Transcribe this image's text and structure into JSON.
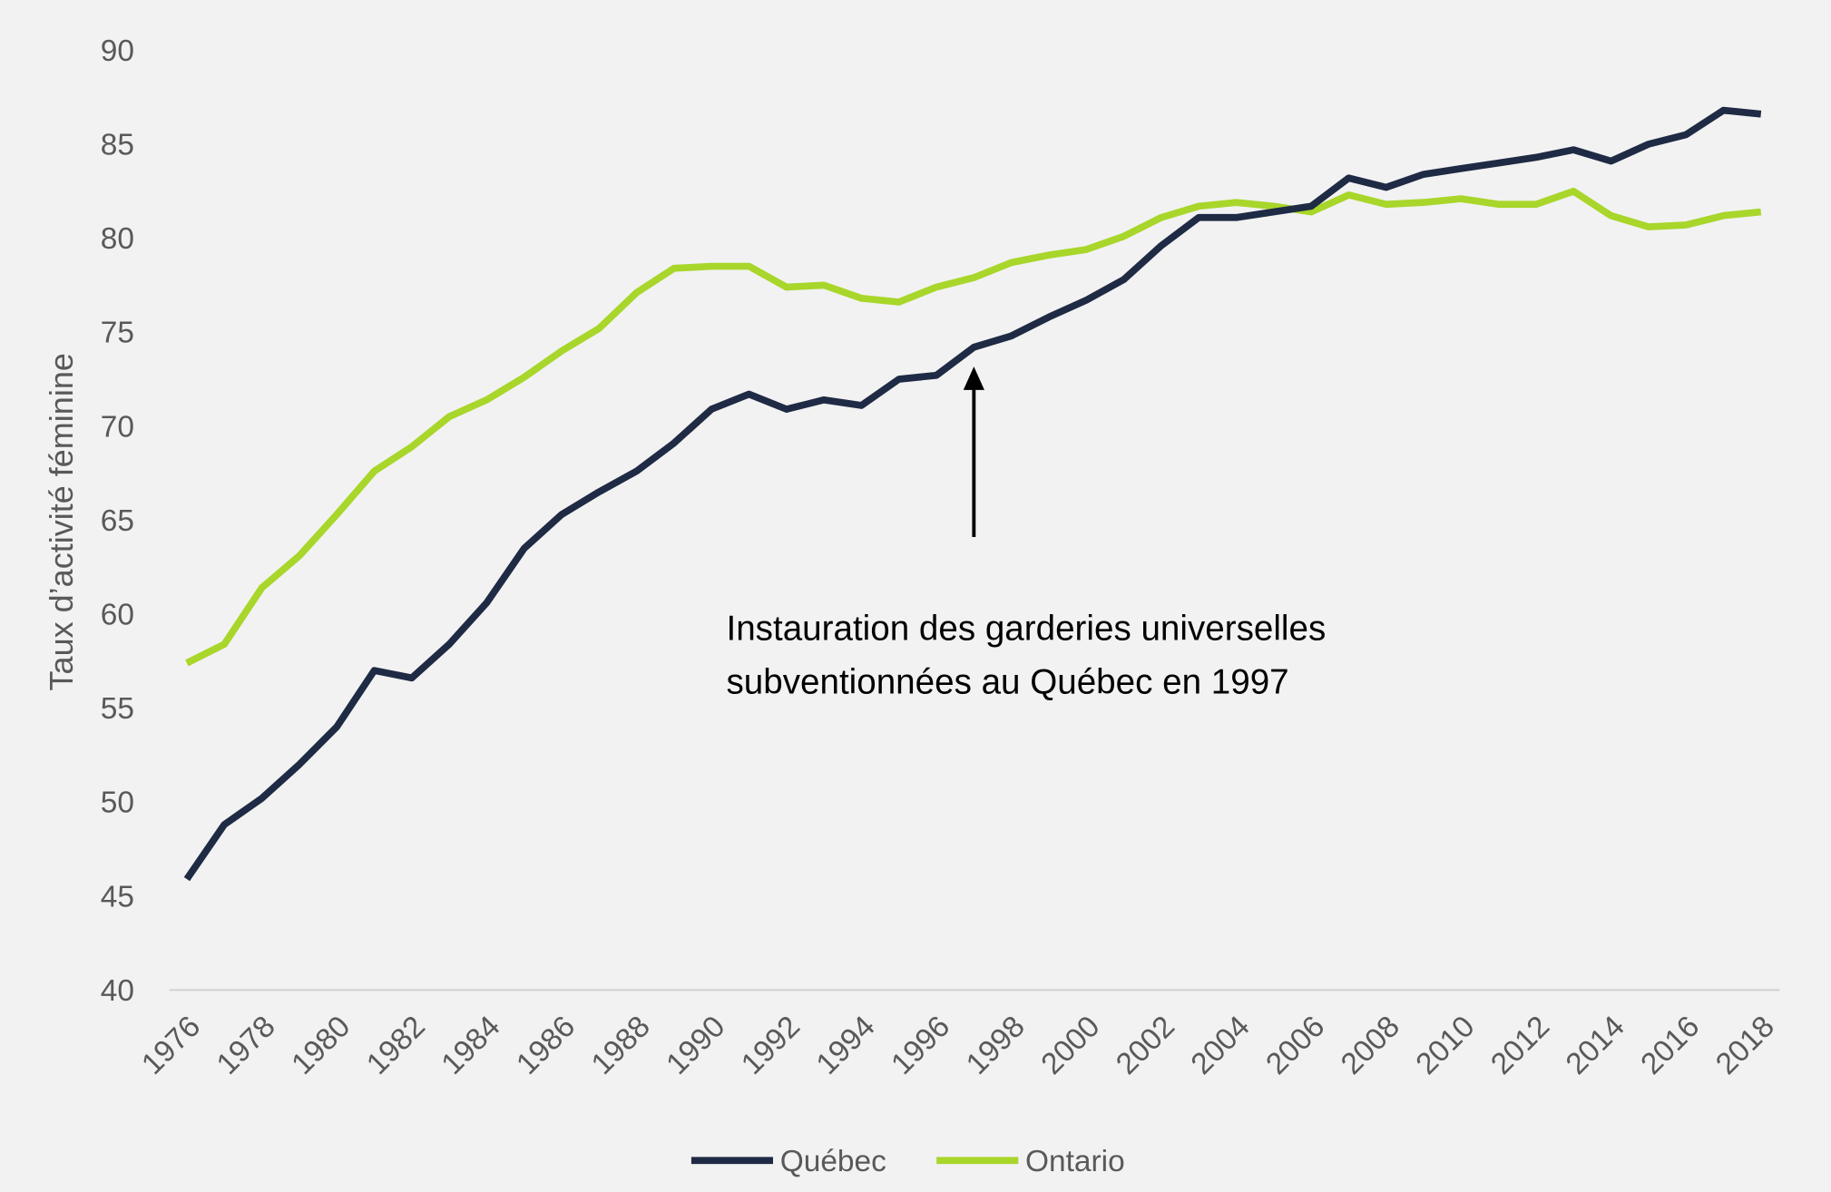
{
  "chart_data": {
    "type": "line",
    "title": "",
    "xlabel": "",
    "ylabel": "Taux d’activité féminine",
    "ylim": [
      40,
      90
    ],
    "yticks": [
      40,
      45,
      50,
      55,
      60,
      65,
      70,
      75,
      80,
      85,
      90
    ],
    "xticks": [
      1976,
      1978,
      1980,
      1982,
      1984,
      1986,
      1988,
      1990,
      1992,
      1994,
      1996,
      1998,
      2000,
      2002,
      2004,
      2006,
      2008,
      2010,
      2012,
      2014,
      2016,
      2018
    ],
    "grid": false,
    "legend_position": "bottom",
    "x": [
      1976,
      1977,
      1978,
      1979,
      1980,
      1981,
      1982,
      1983,
      1984,
      1985,
      1986,
      1987,
      1988,
      1989,
      1990,
      1991,
      1992,
      1993,
      1994,
      1995,
      1996,
      1997,
      1998,
      1999,
      2000,
      2001,
      2002,
      2003,
      2004,
      2005,
      2006,
      2007,
      2008,
      2009,
      2010,
      2011,
      2012,
      2013,
      2014,
      2015,
      2016,
      2017,
      2018
    ],
    "series": [
      {
        "name": "Québec",
        "color": "#1f2a44",
        "values": [
          45.9,
          48.8,
          50.2,
          52.0,
          54.0,
          57.0,
          56.6,
          58.4,
          60.6,
          63.5,
          65.3,
          66.5,
          67.6,
          69.1,
          70.9,
          71.7,
          70.9,
          71.4,
          71.1,
          72.5,
          72.7,
          74.2,
          74.8,
          75.8,
          76.7,
          77.8,
          79.6,
          81.1,
          81.1,
          81.4,
          81.7,
          83.2,
          82.7,
          83.4,
          83.7,
          84.0,
          84.3,
          84.7,
          84.1,
          85.0,
          85.5,
          86.8,
          86.6
        ]
      },
      {
        "name": "Ontario",
        "color": "#a8d62a",
        "values": [
          57.4,
          58.4,
          61.4,
          63.1,
          65.3,
          67.6,
          68.9,
          70.5,
          71.4,
          72.6,
          74.0,
          75.2,
          77.1,
          78.4,
          78.5,
          78.5,
          77.4,
          77.5,
          76.8,
          76.6,
          77.4,
          77.9,
          78.7,
          79.1,
          79.4,
          80.1,
          81.1,
          81.7,
          81.9,
          81.7,
          81.4,
          82.3,
          81.8,
          81.9,
          82.1,
          81.8,
          81.8,
          82.5,
          81.2,
          80.6,
          80.7,
          81.2,
          81.4
        ]
      }
    ],
    "annotation": {
      "lines": [
        "Instauration des garderies universelles",
        "subventionnées au Québec en 1997"
      ],
      "arrow_year": 1997
    }
  }
}
